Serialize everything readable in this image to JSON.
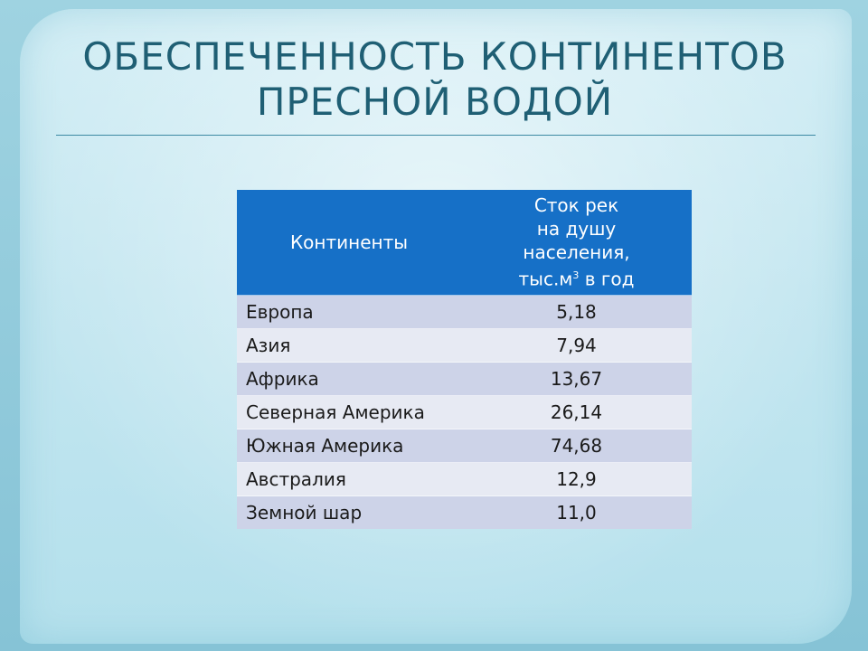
{
  "slide": {
    "title_line1": "ОБЕСПЕЧЕННОСТЬ КОНТИНЕНТОВ",
    "title_line2": "ПРЕСНОЙ ВОДОЙ"
  },
  "table": {
    "header_continents": "Континенты",
    "header_value_line1": "Сток рек",
    "header_value_line2": "на душу",
    "header_value_line3": "населения,",
    "header_value_line4_prefix": "тыс.м",
    "header_value_line4_sup": "3",
    "header_value_line4_suffix": " в год",
    "rows": [
      {
        "name": "Европа",
        "value": "5,18"
      },
      {
        "name": "Азия",
        "value": "7,94"
      },
      {
        "name": "Африка",
        "value": "13,67"
      },
      {
        "name": "Северная Америка",
        "value": "26,14"
      },
      {
        "name": "Южная Америка",
        "value": "74,68"
      },
      {
        "name": "Австралия",
        "value": "12,9"
      },
      {
        "name": "Земной шар",
        "value": "11,0"
      }
    ]
  },
  "colors": {
    "header_bg": "#1670c7",
    "row_odd": "#cdd3e8",
    "row_even": "#e7eaf3",
    "title_color": "#1f5f74"
  }
}
